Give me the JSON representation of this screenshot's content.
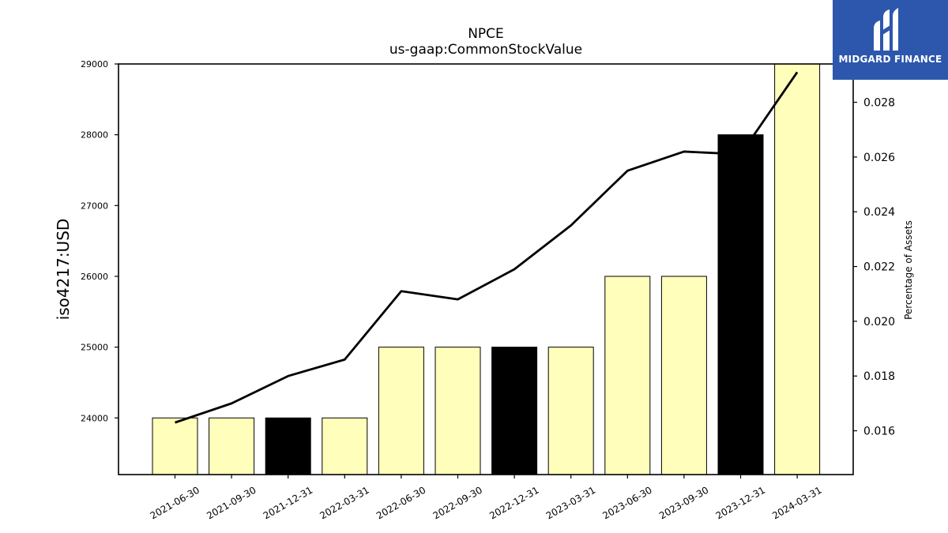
{
  "chart_data": {
    "type": "bar",
    "title": "NPCE",
    "subtitle": "us-gaap:CommonStockValue",
    "ylabel": "iso4217:USD",
    "y2label": "Percentage of Assets",
    "categories": [
      "2021-06-30",
      "2021-09-30",
      "2021-12-31",
      "2022-03-31",
      "2022-06-30",
      "2022-09-30",
      "2022-12-31",
      "2023-03-31",
      "2023-06-30",
      "2023-09-30",
      "2023-12-31",
      "2024-03-31"
    ],
    "series": [
      {
        "values": [
          24000,
          24000,
          24000,
          24000,
          25000,
          25000,
          25000,
          25000,
          26000,
          26000,
          28000,
          29000
        ],
        "colors": [
          "#ffffbb",
          "#ffffbb",
          "#000000",
          "#ffffbb",
          "#ffffbb",
          "#ffffbb",
          "#000000",
          "#ffffbb",
          "#ffffbb",
          "#ffffbb",
          "#000000",
          "#ffffbb"
        ]
      },
      {
        "type": "line",
        "axis": "right",
        "values": [
          0.0163,
          0.017,
          0.018,
          0.0186,
          0.0211,
          0.0208,
          0.0219,
          0.0235,
          0.0255,
          0.0262,
          0.0261,
          0.0291
        ]
      }
    ],
    "ylim": [
      23200,
      29000
    ],
    "yticks": [
      24000,
      25000,
      26000,
      27000,
      28000,
      29000
    ],
    "y2lim": [
      0.0144,
      0.0294
    ],
    "y2ticks": [
      "0.016",
      "0.018",
      "0.020",
      "0.022",
      "0.024",
      "0.026",
      "0.028"
    ],
    "grid": false,
    "legend": "none"
  },
  "logo": {
    "text": "MIDGARD FINANCE",
    "color": "#2d57ad"
  }
}
